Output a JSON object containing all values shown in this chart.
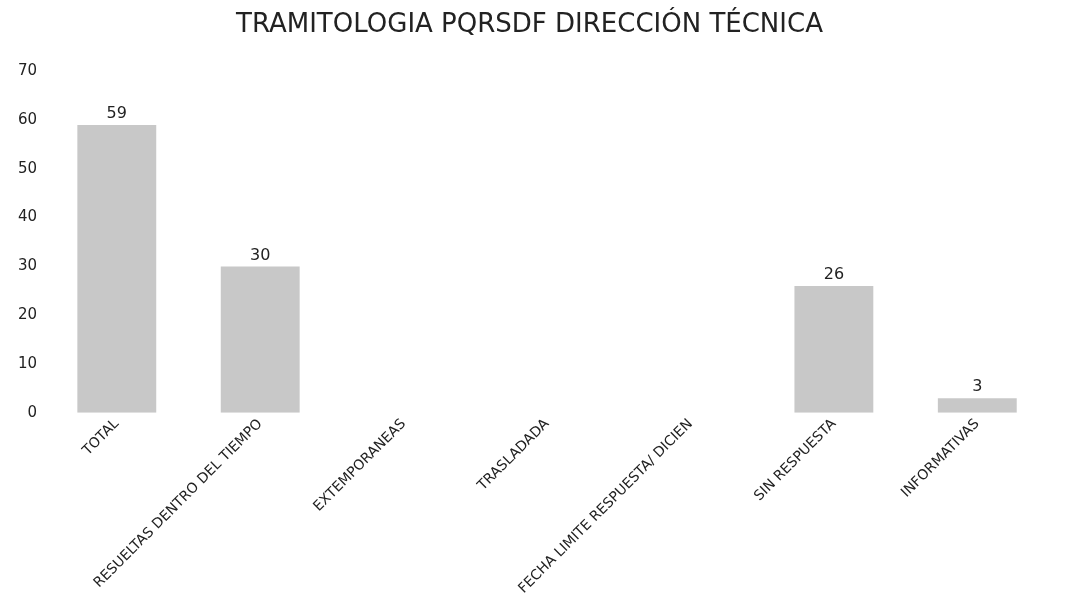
{
  "chart_data": {
    "type": "bar",
    "title": "TRAMITOLOGIA PQRSDF DIRECCIÓN TÉCNICA",
    "categories": [
      "TOTAL",
      "RESUELTAS DENTRO DEL TIEMPO",
      "EXTEMPORANEAS",
      "TRASLADADA",
      "FECHA LIMITE RESPUESTA/ DICIEN",
      "SIN RESPUESTA",
      "INFORMATIVAS"
    ],
    "values": [
      59,
      30,
      null,
      null,
      null,
      26,
      3
    ],
    "color": "#c8c8c8",
    "ylim": [
      0,
      70
    ],
    "yticks": [
      0,
      10,
      20,
      30,
      40,
      50,
      60,
      70
    ],
    "data_labels": true,
    "grid": false,
    "legend": false
  }
}
